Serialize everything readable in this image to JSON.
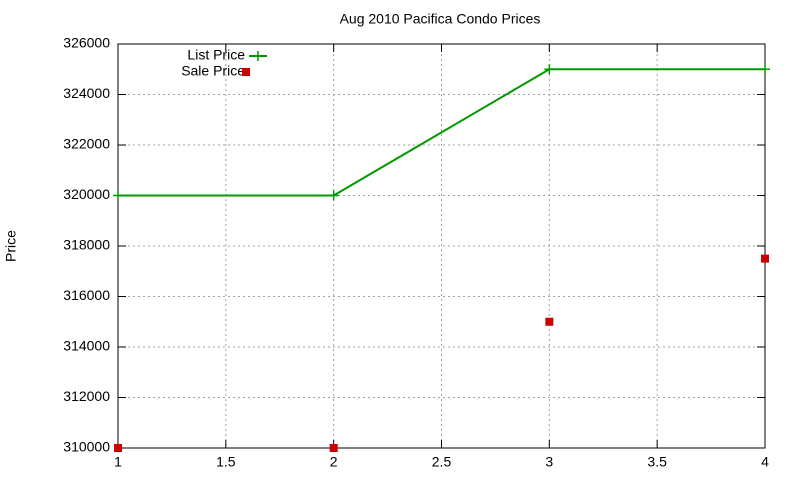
{
  "chart_data": {
    "type": "line",
    "title": "Aug 2010 Pacifica Condo Prices",
    "y_label": "Price",
    "x": [
      1,
      2,
      3,
      4
    ],
    "series": [
      {
        "name": "List Price",
        "color": "#009900",
        "style": "linespoints",
        "values": [
          320000,
          320000,
          325000,
          325000
        ]
      },
      {
        "name": "Sale Price",
        "color": "#cc0000",
        "style": "points",
        "values": [
          310000,
          310000,
          315000,
          317500
        ]
      }
    ],
    "xlim": [
      1,
      4
    ],
    "xticks": [
      1,
      1.5,
      2,
      2.5,
      3,
      3.5,
      4
    ],
    "ylim": [
      310000,
      326000
    ],
    "yticks": [
      310000,
      312000,
      314000,
      316000,
      318000,
      320000,
      322000,
      324000,
      326000
    ],
    "grid": true,
    "legend": "top-left"
  }
}
